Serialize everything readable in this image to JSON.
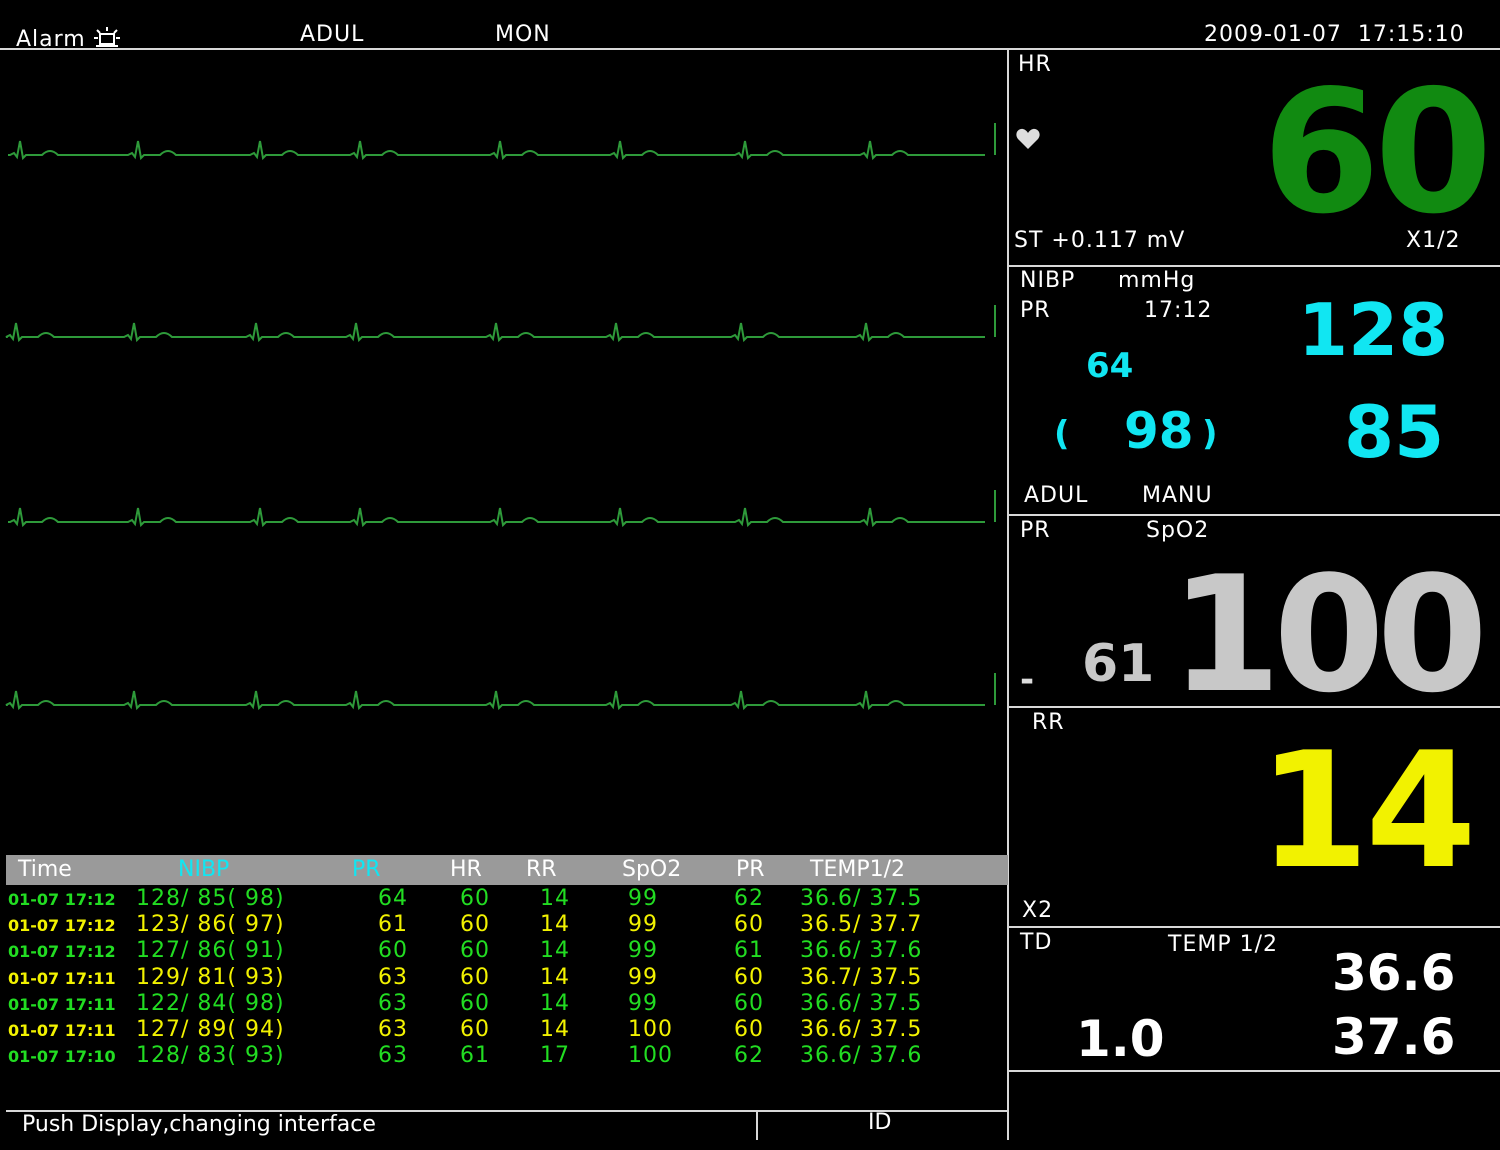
{
  "header": {
    "alarm_label": "Alarm",
    "patient_type": "ADUL",
    "mode": "MON",
    "datetime": "2009-01-07  17:15:10"
  },
  "hr_panel": {
    "label": "HR",
    "value": "60",
    "st_text": "ST +0.117 mV",
    "scale": "X1/2",
    "color": "#118a11"
  },
  "nibp_panel": {
    "label": "NIBP",
    "unit": "mmHg",
    "pr_label": "PR",
    "time": "17:12",
    "pr_value": "64",
    "systolic": "128",
    "mean_open": "(",
    "mean": "98",
    "mean_close": ")",
    "diastolic": "85",
    "patient_type": "ADUL",
    "mode": "MANU",
    "color": "#11e6f2"
  },
  "spo2_panel": {
    "pr_label": "PR",
    "label": "SpO2",
    "pr_value": "61",
    "value": "100",
    "dash": "-",
    "color": "#c8c8c8"
  },
  "rr_panel": {
    "label": "RR",
    "value": "14",
    "scale": "X2",
    "color": "#f2f200"
  },
  "temp_panel": {
    "td_label": "TD",
    "label": "TEMP 1/2",
    "td_value": "1.0",
    "temp1": "36.6",
    "temp2": "37.6"
  },
  "trend_table": {
    "headers": [
      "Time",
      "NIBP",
      "PR",
      "HR",
      "RR",
      "SpO2",
      "PR",
      "TEMP1/2"
    ],
    "rows": [
      {
        "time": "01-07 17:12",
        "nibp": "128/ 85( 98)",
        "pr": "64",
        "hr": "60",
        "rr": "14",
        "spo2": "99",
        "pr2": "62",
        "temp": "36.6/ 37.5"
      },
      {
        "time": "01-07 17:12",
        "nibp": "123/ 86( 97)",
        "pr": "61",
        "hr": "60",
        "rr": "14",
        "spo2": "99",
        "pr2": "60",
        "temp": "36.5/ 37.7"
      },
      {
        "time": "01-07 17:12",
        "nibp": "127/ 86( 91)",
        "pr": "60",
        "hr": "60",
        "rr": "14",
        "spo2": "99",
        "pr2": "61",
        "temp": "36.6/ 37.6"
      },
      {
        "time": "01-07 17:11",
        "nibp": "129/ 81( 93)",
        "pr": "63",
        "hr": "60",
        "rr": "14",
        "spo2": "99",
        "pr2": "60",
        "temp": "36.7/ 37.5"
      },
      {
        "time": "01-07 17:11",
        "nibp": "122/ 84( 98)",
        "pr": "63",
        "hr": "60",
        "rr": "14",
        "spo2": "99",
        "pr2": "60",
        "temp": "36.6/ 37.5"
      },
      {
        "time": "01-07 17:11",
        "nibp": "127/ 89( 94)",
        "pr": "63",
        "hr": "60",
        "rr": "14",
        "spo2": "100",
        "pr2": "60",
        "temp": "36.6/ 37.5"
      },
      {
        "time": "01-07 17:10",
        "nibp": "128/ 83( 93)",
        "pr": "63",
        "hr": "61",
        "rr": "17",
        "spo2": "100",
        "pr2": "62",
        "temp": "36.6/ 37.6"
      }
    ]
  },
  "status_bar": {
    "message": "Push Display,changing interface",
    "id_label": "ID"
  },
  "colors": {
    "ecg_trace": "#2e9a3a",
    "table_green": "#22dd22",
    "table_yellow": "#f2f200",
    "nibp_header": "#11e6f2"
  }
}
